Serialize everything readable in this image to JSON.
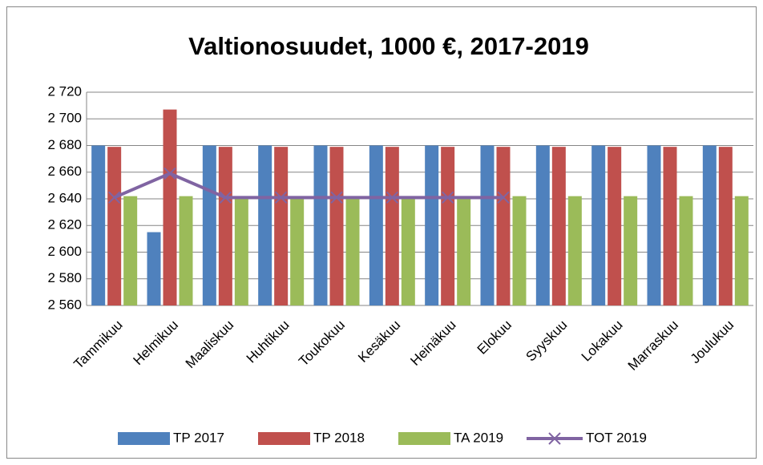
{
  "chart_data": {
    "type": "bar",
    "title": "Valtionosuudet, 1000 €, 2017-2019",
    "categories": [
      "Tammikuu",
      "Helmikuu",
      "Maaliskuu",
      "Huhtikuu",
      "Toukokuu",
      "Kesäkuu",
      "Heinäkuu",
      "Elokuu",
      "Syyskuu",
      "Lokakuu",
      "Marraskuu",
      "Joulukuu"
    ],
    "series": [
      {
        "name": "TP 2017",
        "type": "bar",
        "color": "#4f81bd",
        "values": [
          2680,
          2615,
          2680,
          2680,
          2680,
          2680,
          2680,
          2680,
          2680,
          2680,
          2680,
          2680
        ]
      },
      {
        "name": "TP 2018",
        "type": "bar",
        "color": "#c0504d",
        "values": [
          2679,
          2707,
          2679,
          2679,
          2679,
          2679,
          2679,
          2679,
          2679,
          2679,
          2679,
          2679
        ]
      },
      {
        "name": "TA 2019",
        "type": "bar",
        "color": "#9bbb59",
        "values": [
          2642,
          2642,
          2642,
          2642,
          2642,
          2642,
          2642,
          2642,
          2642,
          2642,
          2642,
          2642
        ]
      },
      {
        "name": "TOT 2019",
        "type": "line",
        "color": "#8064a2",
        "values": [
          2641,
          2659,
          2641,
          2641,
          2641,
          2641,
          2641,
          2641,
          null,
          null,
          null,
          null
        ]
      }
    ],
    "ylim": [
      2560,
      2720
    ],
    "yticks": [
      {
        "value": 2560,
        "label": "2 560"
      },
      {
        "value": 2580,
        "label": "2 580"
      },
      {
        "value": 2600,
        "label": "2 600"
      },
      {
        "value": 2620,
        "label": "2 620"
      },
      {
        "value": 2640,
        "label": "2 640"
      },
      {
        "value": 2660,
        "label": "2 660"
      },
      {
        "value": 2680,
        "label": "2 680"
      },
      {
        "value": 2700,
        "label": "2 700"
      },
      {
        "value": 2720,
        "label": "2 720"
      }
    ],
    "grid": true,
    "legend": "bottom"
  }
}
